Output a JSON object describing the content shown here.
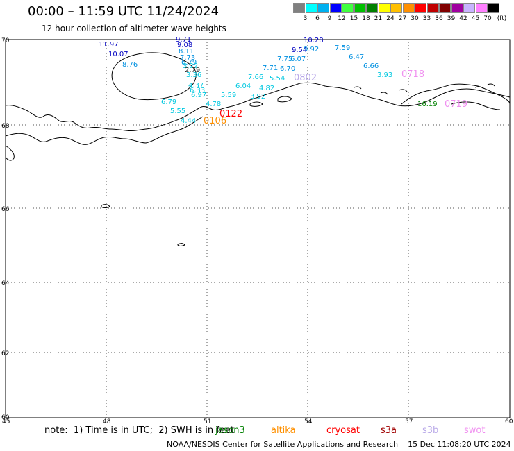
{
  "header": {
    "title": "00:00 – 11:59 UTC 11/24/2024",
    "subtitle": "12 hour collection of altimeter wave heights"
  },
  "colorbar": {
    "unit": "(ft)",
    "colors": [
      "#808080",
      "#00ffff",
      "#00b0f0",
      "#0000ff",
      "#40ff40",
      "#00c000",
      "#008000",
      "#ffff00",
      "#ffc000",
      "#ff9000",
      "#ff0000",
      "#c00000",
      "#800000",
      "#a000a0",
      "#c8b4ff",
      "#ff80ff",
      "#000000"
    ],
    "ticks": [
      "3",
      "6",
      "9",
      "12",
      "15",
      "18",
      "21",
      "24",
      "27",
      "30",
      "33",
      "36",
      "39",
      "42",
      "45",
      "70"
    ]
  },
  "axes": {
    "lat_labels": [
      "70",
      "68",
      "66",
      "64",
      "62",
      "60"
    ],
    "lon_labels": [
      "45",
      "48",
      "51",
      "54",
      "57",
      "60"
    ]
  },
  "wave_heights": [
    {
      "value": "9.71",
      "color": "#0000c0"
    },
    {
      "value": "11.97",
      "color": "#0000c0"
    },
    {
      "value": "9.08",
      "color": "#0000c0"
    },
    {
      "value": "10.07",
      "color": "#0000c0"
    },
    {
      "value": "8.11",
      "color": "#0090e0"
    },
    {
      "value": "7.73",
      "color": "#0090e0"
    },
    {
      "value": "6.79",
      "color": "#0090e0"
    },
    {
      "value": "8.76",
      "color": "#0090e0"
    },
    {
      "value": "3.22",
      "color": "#00c8e0"
    },
    {
      "value": "2.79",
      "color": "#333333"
    },
    {
      "value": "3.36",
      "color": "#00c8e0"
    },
    {
      "value": "4.37",
      "color": "#00c8e0"
    },
    {
      "value": "6.33",
      "color": "#00c8e0"
    },
    {
      "value": "6.97",
      "color": "#00c8e0"
    },
    {
      "value": "6.79",
      "color": "#00c8e0"
    },
    {
      "value": "5.55",
      "color": "#00c8e0"
    },
    {
      "value": "4.78",
      "color": "#00c8e0"
    },
    {
      "value": "5.59",
      "color": "#00c8e0"
    },
    {
      "value": "4.44",
      "color": "#00c8e0"
    },
    {
      "value": "6.04",
      "color": "#00c8e0"
    },
    {
      "value": "7.66",
      "color": "#00c8e0"
    },
    {
      "value": "4.82",
      "color": "#00c8e0"
    },
    {
      "value": "3.92",
      "color": "#00c8e0"
    },
    {
      "value": "7.71",
      "color": "#0090e0"
    },
    {
      "value": "6.70",
      "color": "#0090e0"
    },
    {
      "value": "5.54",
      "color": "#00c8e0"
    },
    {
      "value": "7.75",
      "color": "#0090e0"
    },
    {
      "value": "6.07",
      "color": "#0090e0"
    },
    {
      "value": "9.54",
      "color": "#0000c0"
    },
    {
      "value": "9.92",
      "color": "#0090e0"
    },
    {
      "value": "10.28",
      "color": "#0000c0"
    },
    {
      "value": "7.59",
      "color": "#0090e0"
    },
    {
      "value": "6.47",
      "color": "#0090e0"
    },
    {
      "value": "6.66",
      "color": "#0090e0"
    },
    {
      "value": "3.93",
      "color": "#00c8e0"
    },
    {
      "value": "16.19",
      "color": "#008000"
    }
  ],
  "pass_times": [
    {
      "time": "0122",
      "color": "#ff0000"
    },
    {
      "time": "0106",
      "color": "#ff9000"
    },
    {
      "time": "0802",
      "color": "#b8a8e8"
    },
    {
      "time": "0718",
      "color": "#f090f0"
    },
    {
      "time": "0719",
      "color": "#f090f0"
    }
  ],
  "footer": {
    "note": "note:  1) Time is in UTC;  2) SWH is in feet",
    "satellites": [
      {
        "name": "jason3",
        "color": "#008000"
      },
      {
        "name": "altika",
        "color": "#ff9000"
      },
      {
        "name": "cryosat",
        "color": "#ff0000"
      },
      {
        "name": "s3a",
        "color": "#a00000"
      },
      {
        "name": "s3b",
        "color": "#b8a8e8"
      },
      {
        "name": "swot",
        "color": "#f090f0"
      }
    ],
    "credit": "NOAA/NESDIS Center for Satellite Applications and Research    15 Dec 11:08:20 UTC 2024"
  }
}
